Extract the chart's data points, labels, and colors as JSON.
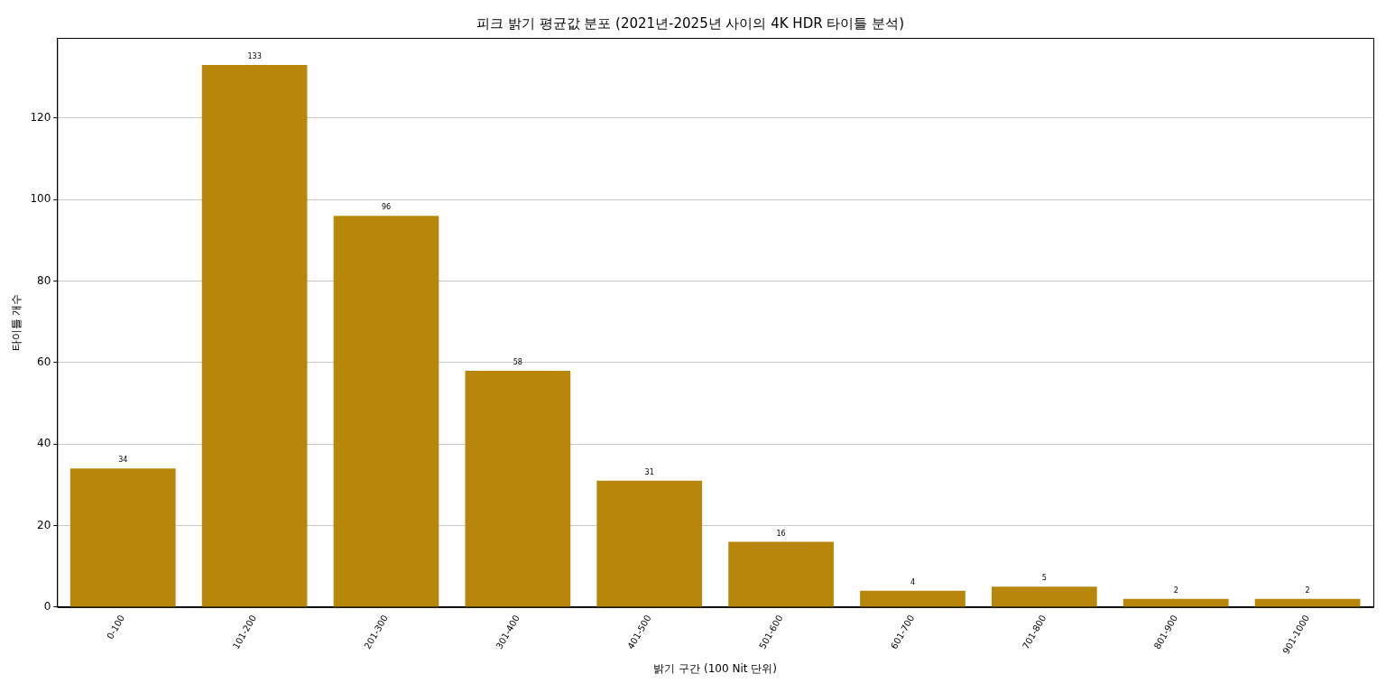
{
  "chart_data": {
    "type": "bar",
    "title": "피크 밝기 평균값 분포 (2021년-2025년 사이의 4K HDR 타이틀 분석)",
    "xlabel": "밝기 구간 (100 Nit 단위)",
    "ylabel": "타이틀 개수",
    "categories": [
      "0-100",
      "101-200",
      "201-300",
      "301-400",
      "401-500",
      "501-600",
      "601-700",
      "701-800",
      "801-900",
      "901-1000"
    ],
    "values": [
      34,
      133,
      96,
      58,
      31,
      16,
      4,
      5,
      2,
      2
    ],
    "color": "#b8860b",
    "ylim": [
      0,
      139.65
    ],
    "yticks": [
      0,
      20,
      40,
      60,
      80,
      100,
      120
    ],
    "grid": "y",
    "data_labels": true
  }
}
